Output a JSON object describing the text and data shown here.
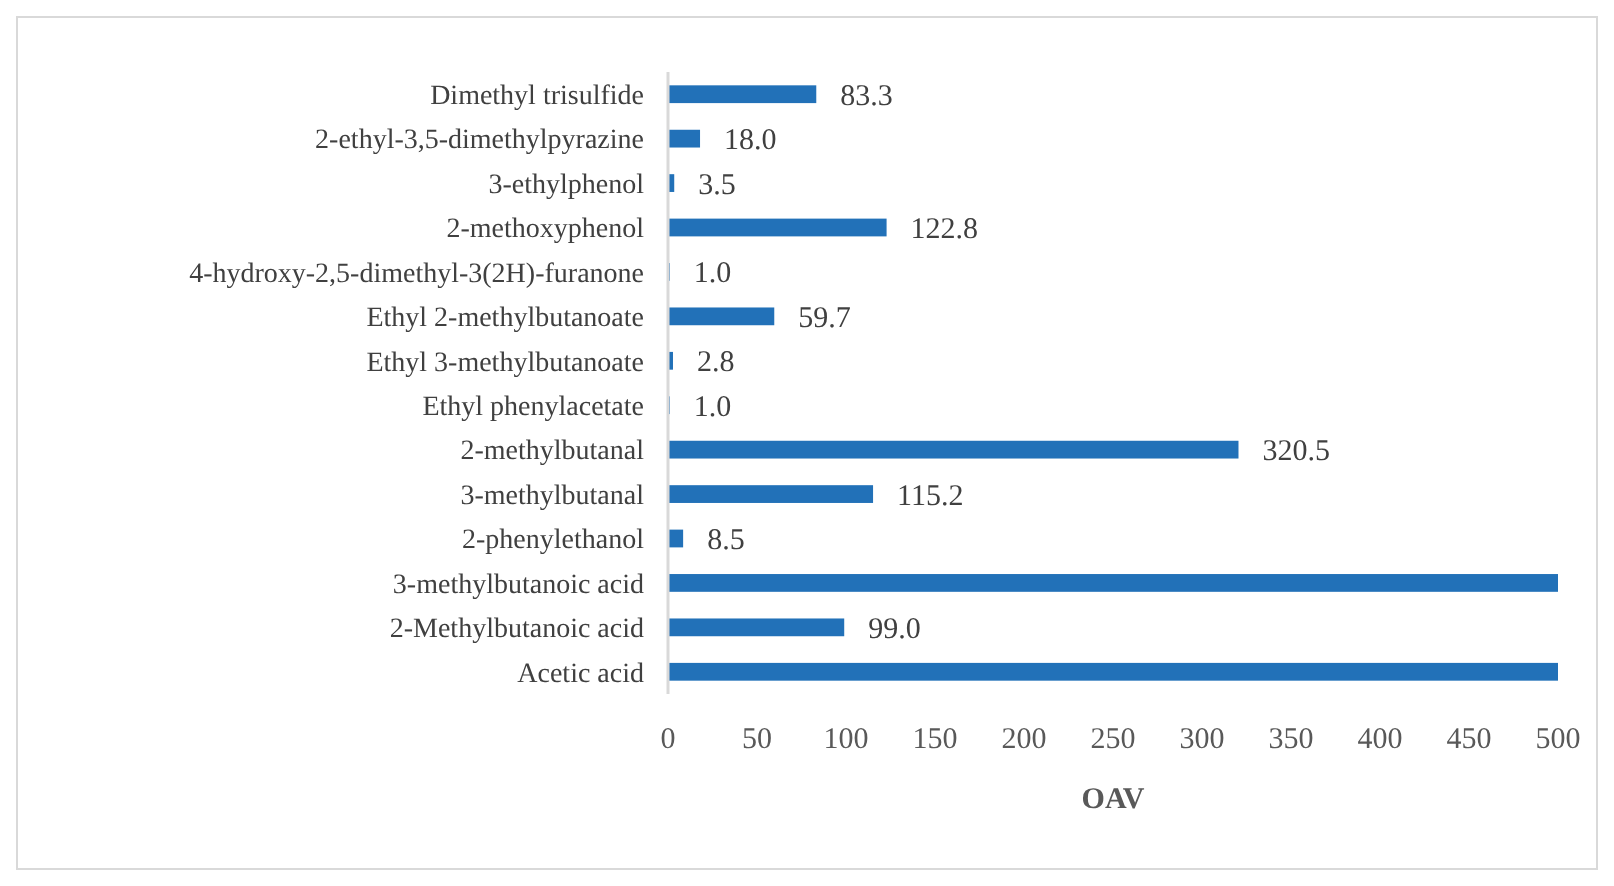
{
  "chart_data": {
    "type": "bar",
    "orientation": "horizontal",
    "xlabel": "OAV",
    "categories": [
      "Dimethyl trisulfide",
      "2-ethyl-3,5-dimethylpyrazine",
      "3-ethylphenol",
      "2-methoxyphenol",
      "4-hydroxy-2,5-dimethyl-3(2H)-furanone",
      "Ethyl 2-methylbutanoate",
      "Ethyl 3-methylbutanoate",
      "Ethyl phenylacetate",
      "2-methylbutanal",
      "3-methylbutanal",
      "2-phenylethanol",
      "3-methylbutanoic acid",
      "2-Methylbutanoic acid",
      "Acetic acid"
    ],
    "values": [
      83.3,
      18.0,
      3.5,
      122.8,
      1.0,
      59.7,
      2.8,
      1.0,
      320.5,
      115.2,
      8.5,
      500,
      99.0,
      500
    ],
    "value_labels": [
      "83.3",
      "18.0",
      "3.5",
      "122.8",
      "1.0",
      "59.7",
      "2.8",
      "1.0",
      "320.5",
      "115.2",
      "8.5",
      null,
      "99.0",
      null
    ],
    "color": "#2271b8",
    "xlim": [
      0,
      500
    ],
    "xticks": [
      0,
      50,
      100,
      150,
      200,
      250,
      300,
      350,
      400,
      450,
      500
    ],
    "grid": false
  }
}
